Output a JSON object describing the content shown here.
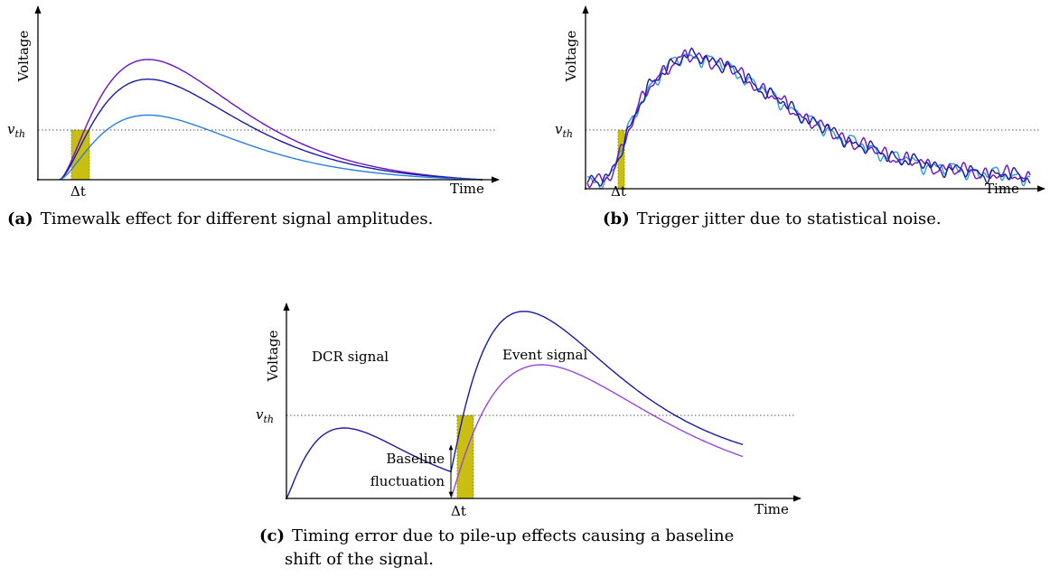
{
  "panel_a": {
    "ylabel": "Voltage",
    "xlabel": "Time",
    "threshold_label": "v",
    "threshold_sub": "th",
    "delta_label": "Δt",
    "caption_tag": "(a)",
    "caption_text": "Timewalk effect for different signal amplitudes."
  },
  "panel_b": {
    "ylabel": "Voltage",
    "xlabel": "Time",
    "threshold_label": "v",
    "threshold_sub": "th",
    "delta_label": "Δt",
    "caption_tag": "(b)",
    "caption_text": "Trigger jitter due to statistical noise."
  },
  "panel_c": {
    "ylabel": "Voltage",
    "xlabel": "Time",
    "threshold_label": "v",
    "threshold_sub": "th",
    "delta_label": "Δt",
    "dcr_label": "DCR signal",
    "event_label": "Event signal",
    "baseline_line1": "Baseline",
    "baseline_line2": "fluctuation",
    "caption_tag": "(c)",
    "caption_line1": "Timing error due to pile-up effects causing a baseline",
    "caption_line2": "shift of the signal."
  },
  "colors": {
    "purple": "#6a11c9",
    "navy": "#1b1ba3",
    "blue": "#2a7de0",
    "violet": "#9b45e0",
    "cyan": "#2f9bd6",
    "highlight": "#c9bf12",
    "highlight_edge": "#8a8a00"
  }
}
